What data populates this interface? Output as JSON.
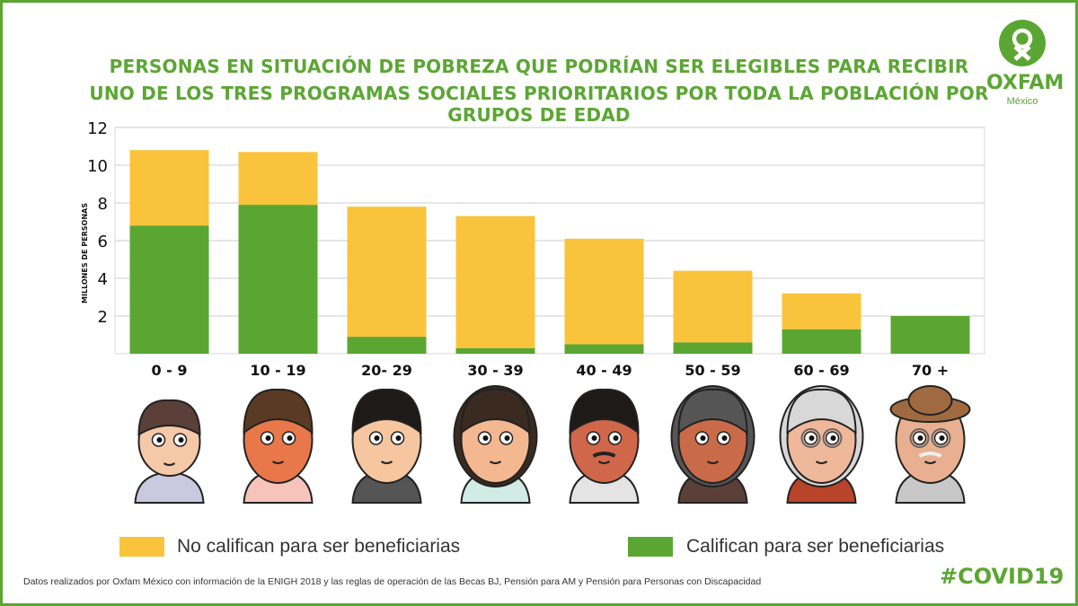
{
  "title": {
    "line1": "PERSONAS EN SITUACIÓN DE POBREZA QUE PODRÍAN SER ELEGIBLES PARA RECIBIR",
    "line2": "UNO DE LOS TRES PROGRAMAS SOCIALES PRIORITARIOS POR TODA LA POBLACIÓN POR GRUPOS DE EDAD"
  },
  "logo": {
    "name": "OXFAM",
    "subtitle": "México",
    "icon": "oxfam-logo-icon"
  },
  "colors": {
    "accent": "#5ba633",
    "qualify": "#5ba633",
    "not_qualify": "#f9c43c",
    "grid": "#d8d8d8"
  },
  "chart_data": {
    "type": "bar",
    "stacked": true,
    "categories": [
      "0 -  9",
      "10 - 19",
      "20- 29",
      "30 - 39",
      "40 - 49",
      "50 - 59",
      "60 - 69",
      "70 +"
    ],
    "series": [
      {
        "name": "Califican para ser beneficiarias",
        "color": "#5ba633",
        "values": [
          6.8,
          7.9,
          0.9,
          0.3,
          0.5,
          0.6,
          1.3,
          2.0
        ]
      },
      {
        "name": "No califican para ser beneficiarias",
        "color": "#f9c43c",
        "values": [
          4.0,
          2.8,
          6.9,
          7.0,
          5.6,
          3.8,
          1.9,
          0.0
        ]
      }
    ],
    "ylabel": "MILLONES DE PERSONAS",
    "yticks": [
      2,
      4,
      6,
      8,
      10,
      12
    ],
    "ylim": [
      0,
      12
    ],
    "grid": true,
    "legend_position": "bottom"
  },
  "illustrations": [
    "child-face-icon",
    "teen-face-icon",
    "young-man-face-icon",
    "woman-face-icon",
    "mustache-man-face-icon",
    "veiled-woman-face-icon",
    "elderly-woman-face-icon",
    "elderly-man-hat-face-icon"
  ],
  "legend": {
    "not_qualify": "No califican para ser beneficiarias",
    "qualify": "Califican para ser beneficiarias"
  },
  "footnote": "Datos realizados por Oxfam México con información de la ENIGH 2018 y las reglas de operación de las Becas BJ, Pensión para  AM y Pensión para Personas con Discapacidad",
  "hashtag": "#COVID19"
}
